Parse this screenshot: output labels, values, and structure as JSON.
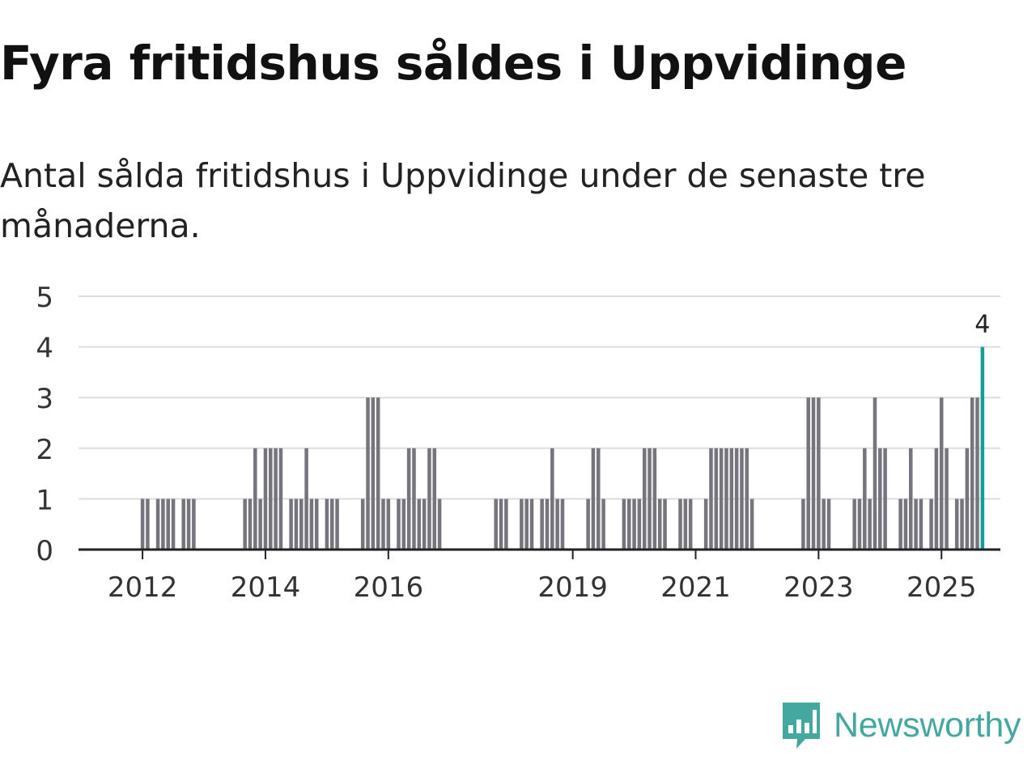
{
  "title": "Fyra fritidshus såldes i Uppvidinge",
  "subtitle": "Antal sålda fritidshus i Uppvidinge under de senaste tre månaderna.",
  "brand": {
    "name": "Newsworthy",
    "icon": "newsworthy-logo-icon"
  },
  "colors": {
    "bar": "#76757e",
    "highlight": "#139e97",
    "grid": "#dddddd",
    "axis": "#222222",
    "brand": "#45a8a0"
  },
  "chart_data": {
    "type": "bar",
    "title": "Fyra fritidshus såldes i Uppvidinge",
    "xlabel": "",
    "ylabel": "",
    "ylim": [
      0,
      5
    ],
    "yticks": [
      0,
      1,
      2,
      3,
      4,
      5
    ],
    "grid": true,
    "x_start": "2011-01",
    "x_end": "2025-12",
    "xticks": [
      {
        "label": "2012",
        "month": "2012-01"
      },
      {
        "label": "2014",
        "month": "2014-01"
      },
      {
        "label": "2016",
        "month": "2016-01"
      },
      {
        "label": "2019",
        "month": "2019-01"
      },
      {
        "label": "2021",
        "month": "2021-01"
      },
      {
        "label": "2023",
        "month": "2023-01"
      },
      {
        "label": "2025",
        "month": "2025-01"
      }
    ],
    "months": [
      "2012-01",
      "2012-02",
      "2012-04",
      "2012-05",
      "2012-06",
      "2012-07",
      "2012-09",
      "2012-10",
      "2012-11",
      "2013-09",
      "2013-10",
      "2013-11",
      "2013-12",
      "2014-01",
      "2014-02",
      "2014-03",
      "2014-04",
      "2014-06",
      "2014-07",
      "2014-08",
      "2014-09",
      "2014-10",
      "2014-11",
      "2015-01",
      "2015-02",
      "2015-03",
      "2015-08",
      "2015-09",
      "2015-10",
      "2015-11",
      "2015-12",
      "2016-01",
      "2016-03",
      "2016-04",
      "2016-05",
      "2016-06",
      "2016-07",
      "2016-08",
      "2016-09",
      "2016-10",
      "2016-11",
      "2017-10",
      "2017-11",
      "2017-12",
      "2018-03",
      "2018-04",
      "2018-05",
      "2018-07",
      "2018-08",
      "2018-09",
      "2018-10",
      "2018-11",
      "2019-04",
      "2019-05",
      "2019-06",
      "2019-07",
      "2019-11",
      "2019-12",
      "2020-01",
      "2020-02",
      "2020-03",
      "2020-04",
      "2020-05",
      "2020-06",
      "2020-07",
      "2020-10",
      "2020-11",
      "2020-12",
      "2021-03",
      "2021-04",
      "2021-05",
      "2021-06",
      "2021-07",
      "2021-08",
      "2021-09",
      "2021-10",
      "2021-11",
      "2021-12",
      "2022-10",
      "2022-11",
      "2022-12",
      "2023-01",
      "2023-02",
      "2023-03",
      "2023-08",
      "2023-09",
      "2023-10",
      "2023-11",
      "2023-12",
      "2024-01",
      "2024-02",
      "2024-05",
      "2024-06",
      "2024-07",
      "2024-08",
      "2024-09",
      "2024-11",
      "2024-12",
      "2025-01",
      "2025-02",
      "2025-04",
      "2025-05",
      "2025-06",
      "2025-07",
      "2025-08",
      "2025-09"
    ],
    "values": [
      1,
      1,
      1,
      1,
      1,
      1,
      1,
      1,
      1,
      1,
      1,
      2,
      1,
      2,
      2,
      2,
      2,
      1,
      1,
      1,
      2,
      1,
      1,
      1,
      1,
      1,
      1,
      3,
      3,
      3,
      1,
      1,
      1,
      1,
      2,
      2,
      1,
      1,
      2,
      2,
      1,
      1,
      1,
      1,
      1,
      1,
      1,
      1,
      1,
      2,
      1,
      1,
      1,
      2,
      2,
      1,
      1,
      1,
      1,
      1,
      2,
      2,
      2,
      1,
      1,
      1,
      1,
      1,
      1,
      2,
      2,
      2,
      2,
      2,
      2,
      2,
      2,
      1,
      1,
      3,
      3,
      3,
      1,
      1,
      1,
      1,
      2,
      1,
      3,
      2,
      2,
      1,
      1,
      2,
      1,
      1,
      1,
      2,
      3,
      2,
      1,
      1,
      2,
      3,
      3,
      4
    ],
    "highlight": {
      "month": "2025-09",
      "value": 4,
      "label": "4"
    }
  }
}
